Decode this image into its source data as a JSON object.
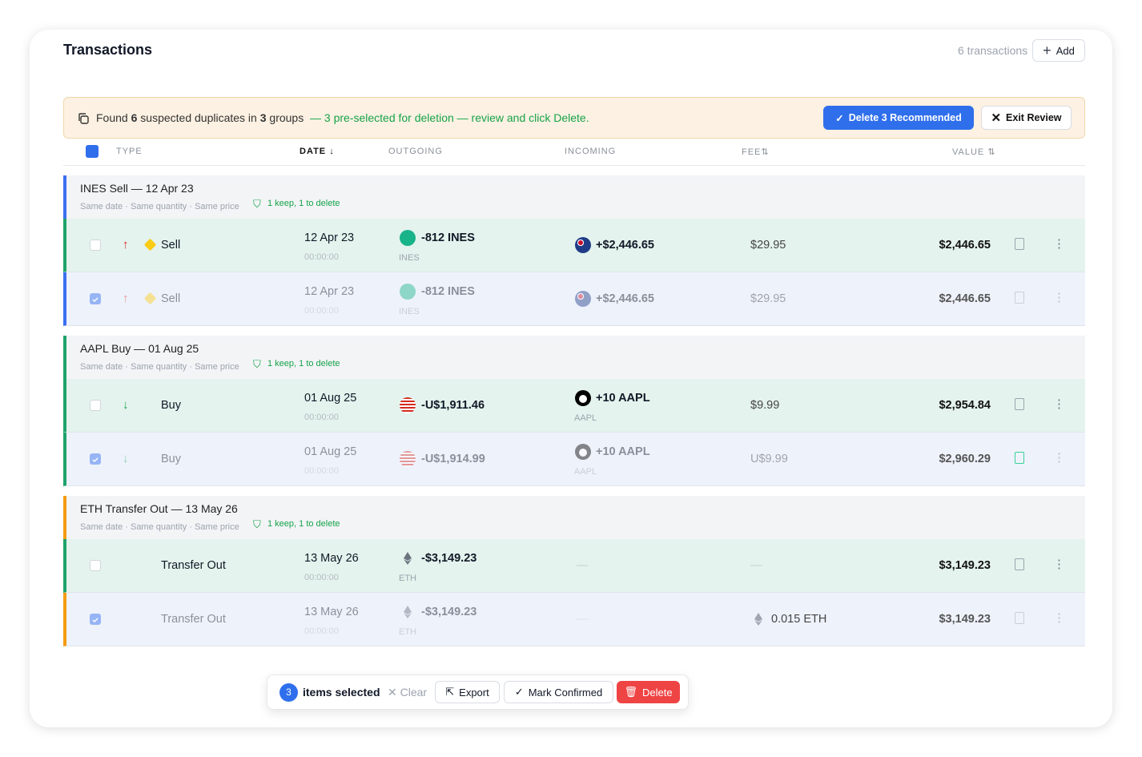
{
  "header": {
    "title": "Transactions",
    "count": "6 transactions",
    "add": "Add"
  },
  "banner": {
    "found": "Found",
    "dup_count": "6",
    "mid": "suspected duplicates in",
    "group_count": "3",
    "groups": "groups",
    "note": "— 3 pre-selected for deletion — review and click Delete.",
    "delete_button": "Delete 3 Recommended",
    "exit_button": "Exit Review"
  },
  "columns": [
    "TYPE",
    "DATE",
    "OUTGOING",
    "INCOMING",
    "FEE",
    "VALUE"
  ],
  "groups": [
    {
      "title": "INES Sell — 12 Apr 23",
      "criteria": "Same date · Same quantity · Same price",
      "badge": "1 keep, 1 to delete",
      "accent": "#3b6ff0",
      "rows": [
        {
          "type": "Sell",
          "arrow": "up",
          "type_icon": "diamond",
          "date": "12 Apr 23",
          "time": "00:00:00",
          "out_icon": "ines",
          "outgoing": "-812 INES",
          "outgoing_sub": "INES",
          "in_icon": "au",
          "incoming": "+$2,446.65",
          "fee": "$29.95",
          "value": "$2,446.65",
          "checked": false,
          "accent": "#1fa36b"
        },
        {
          "type": "Sell",
          "arrow": "up",
          "type_icon": "diamond",
          "date": "12 Apr 23",
          "time": "00:00:00",
          "out_icon": "ines",
          "outgoing": "-812 INES",
          "outgoing_sub": "INES",
          "in_icon": "au",
          "incoming": "+$2,446.65",
          "fee": "$29.95",
          "value": "$2,446.65",
          "checked": true,
          "accent": "#3b6ff0"
        }
      ]
    },
    {
      "title": "AAPL Buy — 01 Aug 25",
      "criteria": "Same date · Same quantity · Same price",
      "badge": "1 keep, 1 to delete",
      "accent": "#1fa36b",
      "rows": [
        {
          "type": "Buy",
          "arrow": "down",
          "date": "01 Aug 25",
          "time": "00:00:00",
          "out_icon": "us",
          "outgoing": "-U$1,911.46",
          "in_icon": "aapl",
          "incoming": "+10 AAPL",
          "incoming_sub": "AAPL",
          "fee": "$9.99",
          "value": "$2,954.84",
          "checked": false,
          "accent": "#1fa36b"
        },
        {
          "type": "Buy",
          "arrow": "down",
          "date": "01 Aug 25",
          "time": "00:00:00",
          "out_icon": "us",
          "outgoing": "-U$1,914.99",
          "in_icon": "aapl",
          "incoming": "+10 AAPL",
          "incoming_sub": "AAPL",
          "fee": "U$9.99",
          "value": "$2,960.29",
          "checked": true,
          "accent": "#1fa36b"
        }
      ]
    },
    {
      "title": "ETH Transfer Out — 13 May 26",
      "criteria": "Same date · Same quantity · Same price",
      "badge": "1 keep, 1 to delete",
      "accent": "#f39c12",
      "rows": [
        {
          "type": "Transfer Out",
          "date": "13 May 26",
          "time": "00:00:00",
          "out_icon": "eth",
          "outgoing": "-$3,149.23",
          "outgoing_sub": "ETH",
          "incoming": "—",
          "fee": "—",
          "value": "$3,149.23",
          "checked": false,
          "accent": "#1fa36b"
        },
        {
          "type": "Transfer Out",
          "date": "13 May 26",
          "time": "00:00:00",
          "out_icon": "eth",
          "outgoing": "-$3,149.23",
          "outgoing_sub": "ETH",
          "incoming": "—",
          "fee_icon": "eth",
          "fee": "0.015 ETH",
          "value": "$3,149.23",
          "checked": true,
          "accent": "#f39c12"
        }
      ]
    }
  ],
  "selection": {
    "count": "3",
    "label": "items selected",
    "clear": "Clear",
    "export": "Export",
    "confirm": "Mark Confirmed",
    "delete": "Delete"
  }
}
